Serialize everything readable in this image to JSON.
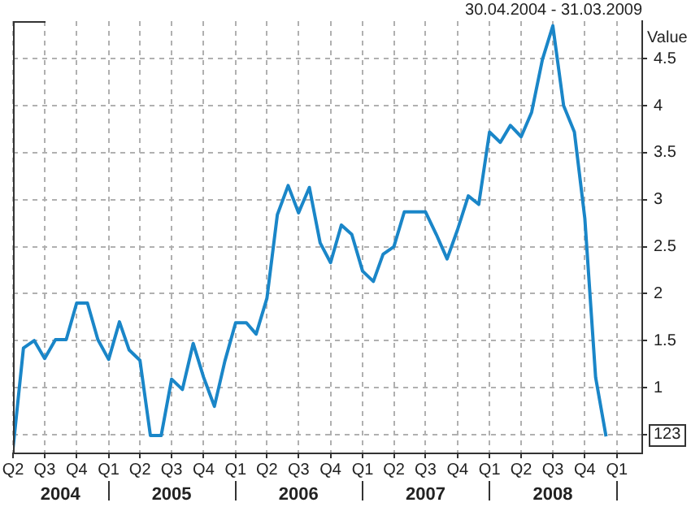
{
  "chart_data": {
    "type": "line",
    "title": "30.04.2004 - 31.03.2009",
    "ylabel": "Value",
    "x": [
      "2004-04",
      "2004-05",
      "2004-06",
      "2004-07",
      "2004-08",
      "2004-09",
      "2004-10",
      "2004-11",
      "2004-12",
      "2005-01",
      "2005-02",
      "2005-03",
      "2005-04",
      "2005-05",
      "2005-06",
      "2005-07",
      "2005-08",
      "2005-09",
      "2005-10",
      "2005-11",
      "2005-12",
      "2006-01",
      "2006-02",
      "2006-03",
      "2006-04",
      "2006-05",
      "2006-06",
      "2006-07",
      "2006-08",
      "2006-09",
      "2006-10",
      "2006-11",
      "2006-12",
      "2007-01",
      "2007-02",
      "2007-03",
      "2007-04",
      "2007-05",
      "2007-06",
      "2007-07",
      "2007-08",
      "2007-09",
      "2007-10",
      "2007-11",
      "2007-12",
      "2008-01",
      "2008-02",
      "2008-03",
      "2008-04",
      "2008-05",
      "2008-06",
      "2008-07",
      "2008-08",
      "2008-09",
      "2008-10",
      "2008-11",
      "2008-12"
    ],
    "series": [
      {
        "color": "#1a86c8",
        "values": [
          0.35,
          1.42,
          1.5,
          1.31,
          1.51,
          1.51,
          1.9,
          1.9,
          1.51,
          1.3,
          1.7,
          1.4,
          1.29,
          0.49,
          0.49,
          1.09,
          0.98,
          1.47,
          1.11,
          0.8,
          1.28,
          1.69,
          1.69,
          1.57,
          1.95,
          2.84,
          3.15,
          2.86,
          3.13,
          2.54,
          2.33,
          2.73,
          2.63,
          2.24,
          2.13,
          2.42,
          2.5,
          2.87,
          2.87,
          2.87,
          2.63,
          2.37,
          2.68,
          3.04,
          2.95,
          3.72,
          3.61,
          3.79,
          3.67,
          3.93,
          4.49,
          4.85,
          4.0,
          3.72,
          2.8,
          1.11,
          0.48
        ]
      }
    ],
    "xlim": [
      "2004-04-01",
      "2009-03-15"
    ],
    "xticks": [
      {
        "value": "2004-04-01",
        "label": "Q2"
      },
      {
        "value": "2004-07-01",
        "label": "Q3"
      },
      {
        "value": "2004-10-01",
        "label": "Q4"
      },
      {
        "value": "2005-01-01",
        "label": "Q1"
      },
      {
        "value": "2005-04-01",
        "label": "Q2"
      },
      {
        "value": "2005-07-01",
        "label": "Q3"
      },
      {
        "value": "2005-10-01",
        "label": "Q4"
      },
      {
        "value": "2006-01-01",
        "label": "Q1"
      },
      {
        "value": "2006-04-01",
        "label": "Q2"
      },
      {
        "value": "2006-07-01",
        "label": "Q3"
      },
      {
        "value": "2006-10-01",
        "label": "Q4"
      },
      {
        "value": "2007-01-01",
        "label": "Q1"
      },
      {
        "value": "2007-04-01",
        "label": "Q2"
      },
      {
        "value": "2007-07-01",
        "label": "Q3"
      },
      {
        "value": "2007-10-01",
        "label": "Q4"
      },
      {
        "value": "2008-01-01",
        "label": "Q1"
      },
      {
        "value": "2008-04-01",
        "label": "Q2"
      },
      {
        "value": "2008-07-01",
        "label": "Q3"
      },
      {
        "value": "2008-10-01",
        "label": "Q4"
      },
      {
        "value": "2009-01-01",
        "label": "Q1"
      }
    ],
    "x2lim": [
      "2004-04-01",
      "2009-03-15"
    ],
    "x2ticks": [
      {
        "value": "2004-08-15",
        "label": "2004"
      },
      {
        "value": "2005-01-01",
        "label": null
      },
      {
        "value": "2005-07-01",
        "label": "2005"
      },
      {
        "value": "2006-01-01",
        "label": null
      },
      {
        "value": "2006-07-01",
        "label": "2006"
      },
      {
        "value": "2007-01-01",
        "label": null
      },
      {
        "value": "2007-07-01",
        "label": "2007"
      },
      {
        "value": "2008-01-01",
        "label": null
      },
      {
        "value": "2008-07-01",
        "label": "2008"
      },
      {
        "value": "2009-01-01",
        "label": null
      }
    ],
    "ylim": [
      0.3,
      4.9
    ],
    "yticks": [
      {
        "value": 0.5,
        "label": null
      },
      1,
      1.5,
      2,
      2.5,
      3,
      3.5,
      4,
      4.5
    ],
    "annotations": [
      "123"
    ],
    "grid": true,
    "legend": false,
    "marker": "none",
    "line_style": "solid"
  }
}
